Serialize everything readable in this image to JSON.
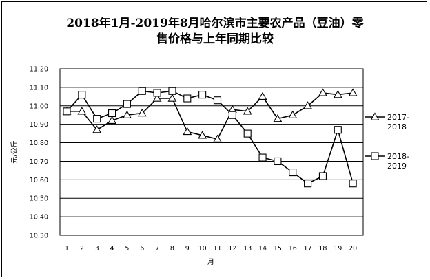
{
  "chart_data": {
    "type": "line",
    "title_line1": "2018年1月-2019年8月哈尔滨市主要农产品（豆油）零",
    "title_line2": "售价格与上年同期比较",
    "xlabel": "月",
    "ylabel": "元/公斤",
    "categories": [
      "1",
      "2",
      "3",
      "4",
      "5",
      "6",
      "7",
      "8",
      "9",
      "10",
      "11",
      "12",
      "13",
      "14",
      "15",
      "16",
      "17",
      "18",
      "19",
      "20"
    ],
    "ylim": [
      10.3,
      11.2
    ],
    "yticks": [
      "11.20",
      "11.10",
      "11.00",
      "10.90",
      "10.80",
      "10.70",
      "10.60",
      "10.50",
      "10.40",
      "10.30"
    ],
    "grid": true,
    "legend_position": "right",
    "series": [
      {
        "name_line1": "2017-",
        "name_line2": "2018",
        "marker": "triangle",
        "values": [
          10.97,
          10.97,
          10.87,
          10.92,
          10.95,
          10.96,
          11.04,
          11.04,
          10.86,
          10.84,
          10.82,
          10.98,
          10.97,
          11.05,
          10.93,
          10.95,
          11.0,
          11.07,
          11.06,
          11.07
        ]
      },
      {
        "name_line1": "2018-",
        "name_line2": "2019",
        "marker": "square",
        "values": [
          10.97,
          11.06,
          10.93,
          10.96,
          11.01,
          11.08,
          11.07,
          11.08,
          11.04,
          11.06,
          11.03,
          10.95,
          10.85,
          10.72,
          10.7,
          10.64,
          10.58,
          10.62,
          10.87,
          10.58
        ]
      }
    ],
    "colors": {
      "line": "#000000",
      "grid": "#000000",
      "background": "#ffffff"
    }
  }
}
